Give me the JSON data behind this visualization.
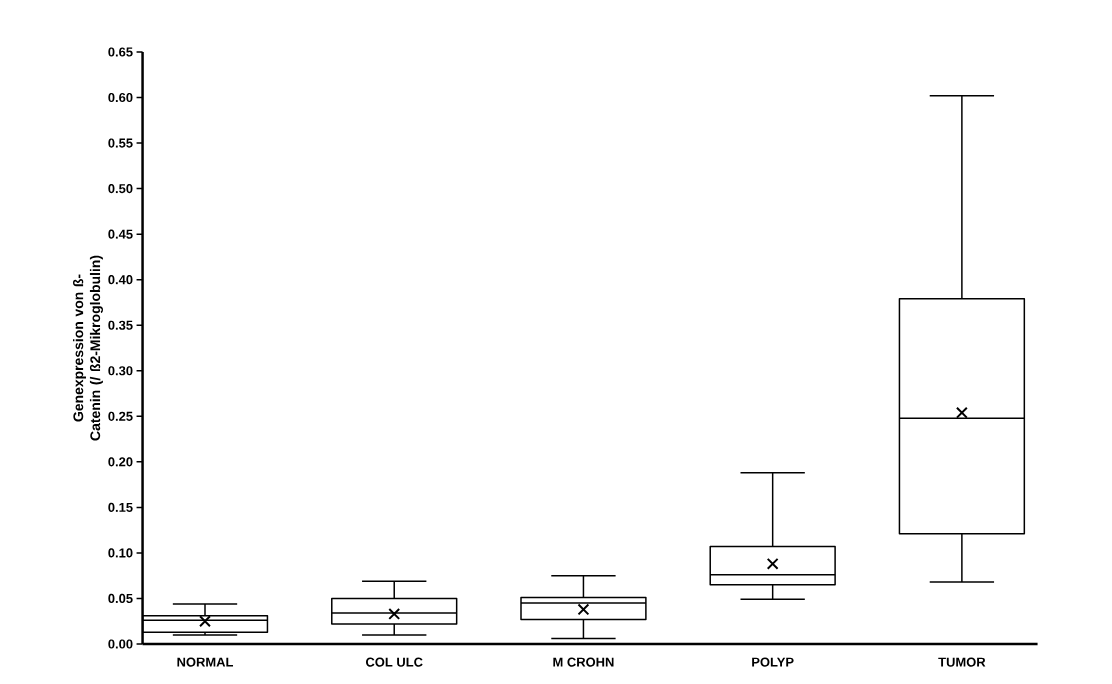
{
  "chart_data": {
    "type": "box",
    "ylabel": "Genexpression von ß-Catenin (/ ß2-Mikroglobulin)",
    "categories": [
      "NORMAL",
      "COL ULC",
      "M CROHN",
      "POLYP",
      "TUMOR"
    ],
    "boxes": [
      {
        "low": 0.01,
        "q1": 0.013,
        "median": 0.026,
        "q3": 0.031,
        "high": 0.044,
        "mean": 0.025
      },
      {
        "low": 0.01,
        "q1": 0.022,
        "median": 0.034,
        "q3": 0.05,
        "high": 0.069,
        "mean": 0.033
      },
      {
        "low": 0.006,
        "q1": 0.027,
        "median": 0.045,
        "q3": 0.051,
        "high": 0.075,
        "mean": 0.038
      },
      {
        "low": 0.049,
        "q1": 0.065,
        "median": 0.076,
        "q3": 0.107,
        "high": 0.188,
        "mean": 0.088
      },
      {
        "low": 0.068,
        "q1": 0.121,
        "median": 0.248,
        "q3": 0.379,
        "high": 0.602,
        "mean": 0.254
      }
    ],
    "color": "#000000",
    "marker": "cross",
    "ylim": [
      0,
      0.65
    ],
    "yticks": [
      {
        "value": 0,
        "label": "0.00"
      },
      {
        "value": 0.05,
        "label": "0.05"
      },
      {
        "value": 0.1,
        "label": "0.10"
      },
      {
        "value": 0.15,
        "label": "0.15"
      },
      {
        "value": 0.2,
        "label": "0.20"
      },
      {
        "value": 0.25,
        "label": "0.25"
      },
      {
        "value": 0.3,
        "label": "0.30"
      },
      {
        "value": 0.35,
        "label": "0.35"
      },
      {
        "value": 0.4,
        "label": "0.40"
      },
      {
        "value": 0.45,
        "label": "0.45"
      },
      {
        "value": 0.5,
        "label": "0.50"
      },
      {
        "value": 0.55,
        "label": "0.55"
      },
      {
        "value": 0.6,
        "label": "0.60"
      },
      {
        "value": 0.65,
        "label": "0.65"
      }
    ],
    "grid": false
  }
}
